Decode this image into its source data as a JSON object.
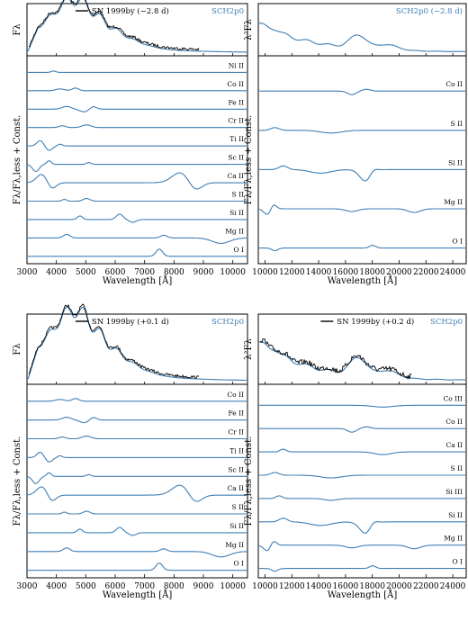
{
  "colors": {
    "model": "#3f7fb5",
    "observed": "#000000"
  },
  "chart_data": [
    {
      "type": "line",
      "x_range": [
        3000,
        10500
      ],
      "x_ticks": [
        "3000",
        "4000",
        "5000",
        "6000",
        "7000",
        "8000",
        "9000",
        "10000"
      ],
      "xlabel": "Wavelength [Å]",
      "top_ylabel": "Fλ",
      "bottom_ylabel": "Fλ/Fλ,less + Const.",
      "legend": {
        "observed": "SN 1999by (−2.8 d)",
        "model": "SCH2p0"
      },
      "series": [
        {
          "name": "SN 1999by (−2.8 d)",
          "role": "observed"
        },
        {
          "name": "SCH2p0",
          "role": "model"
        }
      ],
      "ions": [
        "Ni II",
        "Co II",
        "Fe II",
        "Cr II",
        "Ti II",
        "Sc II",
        "Ca II",
        "S II",
        "Si II",
        "Mg II",
        "O I"
      ]
    },
    {
      "type": "line",
      "x_range": [
        9500,
        25000
      ],
      "x_ticks": [
        "10000",
        "12000",
        "14000",
        "16000",
        "18000",
        "20000",
        "22000",
        "24000"
      ],
      "xlabel": "Wavelength [Å]",
      "top_ylabel": "λ²Fλ",
      "bottom_ylabel": "Fλ/Fλ,less + Const.",
      "legend": {
        "observed": "",
        "model": "SCH2p0 (−2.8 d)"
      },
      "series": [
        {
          "name": "SCH2p0 (−2.8 d)",
          "role": "model"
        }
      ],
      "ions": [
        "Co II",
        "S II",
        "Si II",
        "Mg II",
        "O I"
      ]
    },
    {
      "type": "line",
      "x_range": [
        3000,
        10500
      ],
      "x_ticks": [
        "3000",
        "4000",
        "5000",
        "6000",
        "7000",
        "8000",
        "9000",
        "10000"
      ],
      "xlabel": "Wavelength [Å]",
      "top_ylabel": "Fλ",
      "bottom_ylabel": "Fλ/Fλ,less + Const.",
      "legend": {
        "observed": "SN 1999by (+0.1 d)",
        "model": "SCH2p0"
      },
      "series": [
        {
          "name": "SN 1999by (+0.1 d)",
          "role": "observed"
        },
        {
          "name": "SCH2p0",
          "role": "model"
        }
      ],
      "ions": [
        "Co II",
        "Fe II",
        "Cr II",
        "Ti II",
        "Sc II",
        "Ca II",
        "S II",
        "Si II",
        "Mg II",
        "O I"
      ]
    },
    {
      "type": "line",
      "x_range": [
        9500,
        25000
      ],
      "x_ticks": [
        "10000",
        "12000",
        "14000",
        "16000",
        "18000",
        "20000",
        "22000",
        "24000"
      ],
      "xlabel": "Wavelength [Å]",
      "top_ylabel": "λ²Fλ",
      "bottom_ylabel": "Fλ/Fλ,less + Const.",
      "legend": {
        "observed": "SN 1999by (+0.2 d)",
        "model": "SCH2p0"
      },
      "series": [
        {
          "name": "SN 1999by (+0.2 d)",
          "role": "observed"
        },
        {
          "name": "SCH2p0",
          "role": "model"
        }
      ],
      "ions": [
        "Co III",
        "Co II",
        "Ca II",
        "S II",
        "Si III",
        "Si II",
        "Mg II",
        "O I"
      ]
    }
  ]
}
